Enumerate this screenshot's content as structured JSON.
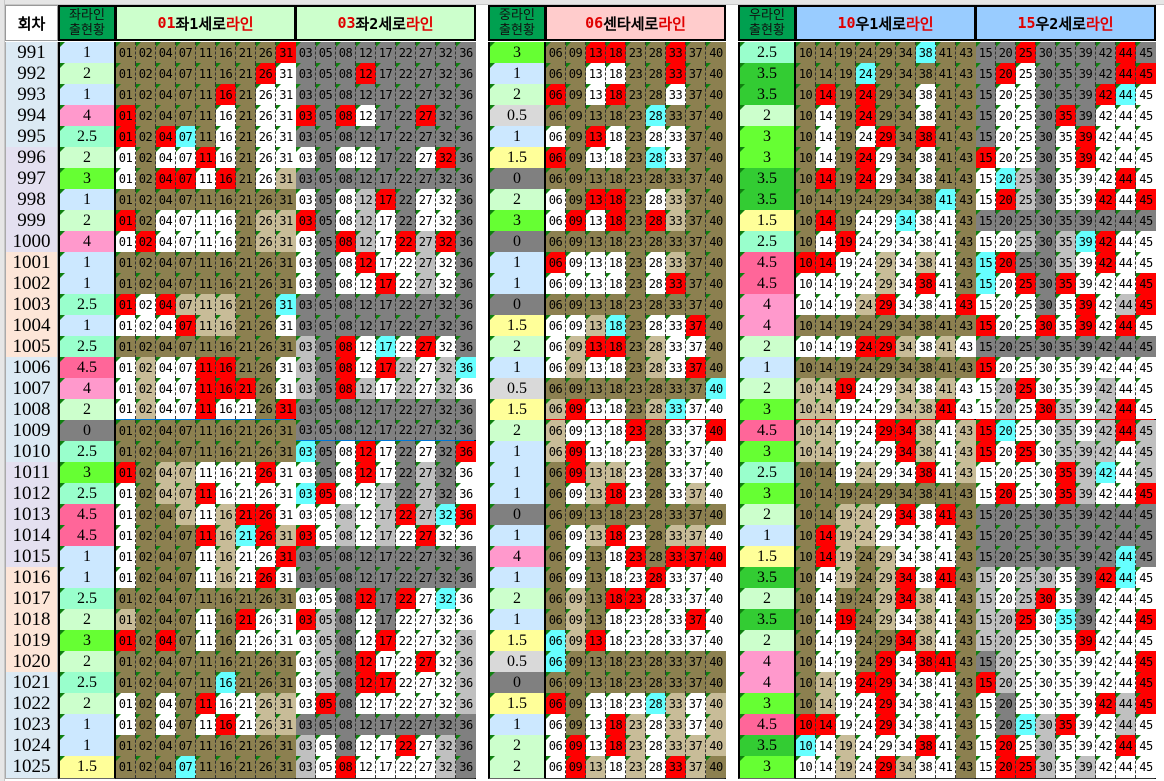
{
  "headers": {
    "round": "회차",
    "left_count": "좌라인\n출현황",
    "center_count": "중라인\n출현황",
    "right_count": "우라인\n출현황"
  },
  "lines": [
    {
      "id": "L1",
      "title_num": "01",
      "title_mid": "좌1세로",
      "title_end": "라인",
      "bg": "#ccffcc",
      "zero_color": "#8c8050",
      "numbers": [
        "01",
        "02",
        "04",
        "07",
        "11",
        "16",
        "21",
        "26",
        "31"
      ]
    },
    {
      "id": "L2",
      "title_num": "03",
      "title_mid": " 좌2세로",
      "title_end": "라인",
      "bg": "#ccffcc",
      "zero_color": "#808080",
      "numbers": [
        "03",
        "05",
        "08",
        "12",
        "17",
        "22",
        "27",
        "32",
        "36"
      ]
    },
    {
      "id": "C",
      "title_num": "06",
      "title_mid": " 센타세로",
      "title_end": "라인",
      "bg": "#ffcccc",
      "zero_color": "#8c8050",
      "numbers": [
        "06",
        "09",
        "13",
        "18",
        "23",
        "28",
        "33",
        "37",
        "40"
      ]
    },
    {
      "id": "R1",
      "title_num": "10",
      "title_mid": " 우1세로",
      "title_end": "라인",
      "bg": "#99ccff",
      "zero_color": "#8c8050",
      "numbers": [
        "10",
        "14",
        "19",
        "24",
        "29",
        "34",
        "38",
        "41",
        "43"
      ]
    },
    {
      "id": "R2",
      "title_num": "15",
      "title_mid": " 우2세로",
      "title_end": "라인",
      "bg": "#99ccff",
      "zero_color": "#808080",
      "numbers": [
        "15",
        "20",
        "25",
        "30",
        "35",
        "39",
        "42",
        "44",
        "45"
      ]
    }
  ],
  "colors": {
    "hit": "#ff0000",
    "bonus": "#66ffff",
    "count_scale": {
      "0": "#808080",
      "0.5": "#d9d9d9",
      "1": "#cce8ff",
      "1.5": "#ffff99",
      "2": "#ccffcc",
      "2.5": "#99ffcc",
      "3": "#66ff33",
      "3.5": "#33cc33",
      "4": "#ff99cc",
      "4.5": "#ff6699"
    }
  },
  "rounds": [
    {
      "round": "991",
      "left": "1",
      "center": "3",
      "right": "2.5",
      "win": [
        13,
        18,
        25,
        31,
        33,
        44
      ],
      "bonus": 38
    },
    {
      "round": "992",
      "left": "2",
      "center": "1",
      "right": "3.5",
      "win": [
        12,
        20,
        26,
        33,
        44,
        45
      ],
      "bonus": 24
    },
    {
      "round": "993",
      "left": "1",
      "center": "2",
      "right": "3.5",
      "win": [
        6,
        14,
        16,
        18,
        24,
        42
      ],
      "bonus": 44
    },
    {
      "round": "994",
      "left": "4",
      "center": "0.5",
      "right": "2",
      "win": [
        1,
        3,
        8,
        24,
        27,
        35
      ],
      "bonus": 28
    },
    {
      "round": "995",
      "left": "2.5",
      "center": "1",
      "right": "3",
      "win": [
        1,
        4,
        13,
        29,
        38,
        39
      ],
      "bonus": 7
    },
    {
      "round": "996",
      "left": "2",
      "center": "1.5",
      "right": "3",
      "win": [
        6,
        11,
        15,
        24,
        32,
        39
      ],
      "bonus": 28
    },
    {
      "round": "997",
      "left": "3",
      "center": "0",
      "right": "3.5",
      "win": [
        4,
        7,
        14,
        16,
        24,
        44
      ],
      "bonus": 20
    },
    {
      "round": "998",
      "left": "1",
      "center": "2",
      "right": "3.5",
      "win": [
        13,
        17,
        18,
        20,
        42,
        45
      ],
      "bonus": 41
    },
    {
      "round": "999",
      "left": "2",
      "center": "3",
      "right": "1.5",
      "win": [
        1,
        3,
        9,
        14,
        18,
        28
      ],
      "bonus": 34
    },
    {
      "round": "1000",
      "left": "4",
      "center": "0",
      "right": "2.5",
      "win": [
        2,
        8,
        19,
        22,
        32,
        42
      ],
      "bonus": 39
    },
    {
      "round": "1001",
      "left": "1",
      "center": "1",
      "right": "4.5",
      "win": [
        6,
        10,
        12,
        14,
        20,
        42
      ],
      "bonus": 15
    },
    {
      "round": "1002",
      "left": "1",
      "center": "1",
      "right": "4.5",
      "win": [
        17,
        25,
        33,
        35,
        38,
        45
      ],
      "bonus": 15
    },
    {
      "round": "1003",
      "left": "2.5",
      "center": "0",
      "right": "4",
      "win": [
        1,
        4,
        29,
        39,
        43,
        45
      ],
      "bonus": 31
    },
    {
      "round": "1004",
      "left": "1",
      "center": "1.5",
      "right": "4",
      "win": [
        7,
        15,
        30,
        37,
        39,
        44
      ],
      "bonus": 18
    },
    {
      "round": "1005",
      "left": "2.5",
      "center": "2",
      "right": "2",
      "win": [
        8,
        13,
        18,
        24,
        27,
        29
      ],
      "bonus": 17
    },
    {
      "round": "1006",
      "left": "4.5",
      "center": "1",
      "right": "1",
      "win": [
        8,
        11,
        15,
        16,
        17,
        37
      ],
      "bonus": 36
    },
    {
      "round": "1007",
      "left": "4",
      "center": "0.5",
      "right": "2",
      "win": [
        8,
        11,
        16,
        19,
        21,
        25
      ],
      "bonus": 40
    },
    {
      "round": "1008",
      "left": "2",
      "center": "1.5",
      "right": "3",
      "win": [
        9,
        11,
        30,
        31,
        41,
        44
      ],
      "bonus": 33
    },
    {
      "round": "1009",
      "left": "0",
      "center": "2",
      "right": "4.5",
      "win": [
        15,
        23,
        29,
        34,
        40,
        44
      ],
      "bonus": 20
    },
    {
      "round": "1010",
      "left": "2.5",
      "center": "1",
      "right": "3",
      "win": [
        9,
        12,
        15,
        25,
        34,
        36
      ],
      "bonus": 3
    },
    {
      "round": "1011",
      "left": "3",
      "center": "1",
      "right": "2.5",
      "win": [
        1,
        9,
        12,
        26,
        35,
        38
      ],
      "bonus": 42
    },
    {
      "round": "1012",
      "left": "2.5",
      "center": "1",
      "right": "3",
      "win": [
        5,
        11,
        18,
        20,
        35,
        45
      ],
      "bonus": 3
    },
    {
      "round": "1013",
      "left": "4.5",
      "center": "0",
      "right": "2",
      "win": [
        21,
        22,
        26,
        34,
        36,
        41
      ],
      "bonus": 32
    },
    {
      "round": "1014",
      "left": "4.5",
      "center": "1",
      "right": "1",
      "win": [
        3,
        11,
        14,
        18,
        26,
        27
      ],
      "bonus": 21
    },
    {
      "round": "1015",
      "left": "1",
      "center": "4",
      "right": "1.5",
      "win": [
        14,
        23,
        31,
        33,
        37,
        40
      ],
      "bonus": 44
    },
    {
      "round": "1016",
      "left": "1",
      "center": "1",
      "right": "3.5",
      "win": [
        26,
        28,
        34,
        41,
        42
      ],
      "bonus": 44
    },
    {
      "round": "1017",
      "left": "2.5",
      "center": "2",
      "right": "2",
      "win": [
        12,
        18,
        22,
        23,
        30,
        34
      ],
      "bonus": 32
    },
    {
      "round": "1018",
      "left": "2",
      "center": "1",
      "right": "3.5",
      "win": [
        3,
        19,
        21,
        25,
        37,
        45
      ],
      "bonus": 35
    },
    {
      "round": "1019",
      "left": "3",
      "center": "1.5",
      "right": "2",
      "win": [
        1,
        4,
        13,
        17,
        34,
        39
      ],
      "bonus": 6
    },
    {
      "round": "1020",
      "left": "2",
      "center": "0.5",
      "right": "4",
      "win": [
        12,
        27,
        29,
        38,
        41,
        45
      ],
      "bonus": 6
    },
    {
      "round": "1021",
      "left": "2.5",
      "center": "0",
      "right": "4",
      "win": [
        12,
        15,
        17,
        24,
        29,
        45
      ],
      "bonus": 16
    },
    {
      "round": "1022",
      "left": "2",
      "center": "1.5",
      "right": "3",
      "win": [
        5,
        6,
        11,
        29,
        42,
        45
      ],
      "bonus": 28
    },
    {
      "round": "1023",
      "left": "1",
      "center": "1",
      "right": "4.5",
      "win": [
        10,
        14,
        16,
        18,
        29,
        35
      ],
      "bonus": 25
    },
    {
      "round": "1024",
      "left": "1",
      "center": "2",
      "right": "3.5",
      "win": [
        9,
        18,
        20,
        22,
        38,
        44
      ],
      "bonus": 10
    },
    {
      "round": "1025",
      "left": "1.5",
      "center": "2",
      "right": "3",
      "win": [
        8,
        9,
        20,
        25,
        29,
        33
      ],
      "bonus": 7
    }
  ]
}
